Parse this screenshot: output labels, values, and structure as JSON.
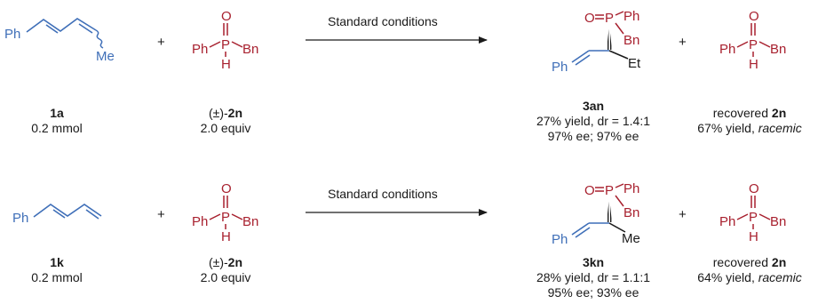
{
  "colors": {
    "substrate_blue": "#3f6fb8",
    "phosphorus_red": "#a8212f",
    "text": "#1a1a1a"
  },
  "row1": {
    "diene": {
      "ph": "Ph",
      "me": "Me",
      "id": "1a",
      "amount": "0.2 mmol"
    },
    "plus1": "+",
    "phos": {
      "o": "O",
      "p": "P",
      "ph": "Ph",
      "bn": "Bn",
      "h": "H",
      "prefix": "(±)-",
      "id": "2n",
      "amount": "2.0 equiv"
    },
    "conditions": "Standard conditions",
    "product": {
      "o": "O",
      "p": "P",
      "ph_p": "Ph",
      "bn": "Bn",
      "ph": "Ph",
      "alkyl": "Et",
      "id": "3an",
      "line1": "27% yield, dr = 1.4:1",
      "line2": "97% ee; 97% ee"
    },
    "plus2": "+",
    "recovered": {
      "o": "O",
      "p": "P",
      "ph": "Ph",
      "bn": "Bn",
      "h": "H",
      "prefix": "recovered ",
      "id": "2n",
      "yield": "67% yield, ",
      "rac": "racemic"
    }
  },
  "row2": {
    "diene": {
      "ph": "Ph",
      "id": "1k",
      "amount": "0.2 mmol"
    },
    "plus1": "+",
    "phos": {
      "o": "O",
      "p": "P",
      "ph": "Ph",
      "bn": "Bn",
      "h": "H",
      "prefix": "(±)-",
      "id": "2n",
      "amount": "2.0 equiv"
    },
    "conditions": "Standard conditions",
    "product": {
      "o": "O",
      "p": "P",
      "ph_p": "Ph",
      "bn": "Bn",
      "ph": "Ph",
      "alkyl": "Me",
      "id": "3kn",
      "line1": "28% yield, dr = 1.1:1",
      "line2": "95% ee; 93% ee"
    },
    "plus2": "+",
    "recovered": {
      "o": "O",
      "p": "P",
      "ph": "Ph",
      "bn": "Bn",
      "h": "H",
      "prefix": "recovered ",
      "id": "2n",
      "yield": "64% yield, ",
      "rac": "racemic"
    }
  }
}
